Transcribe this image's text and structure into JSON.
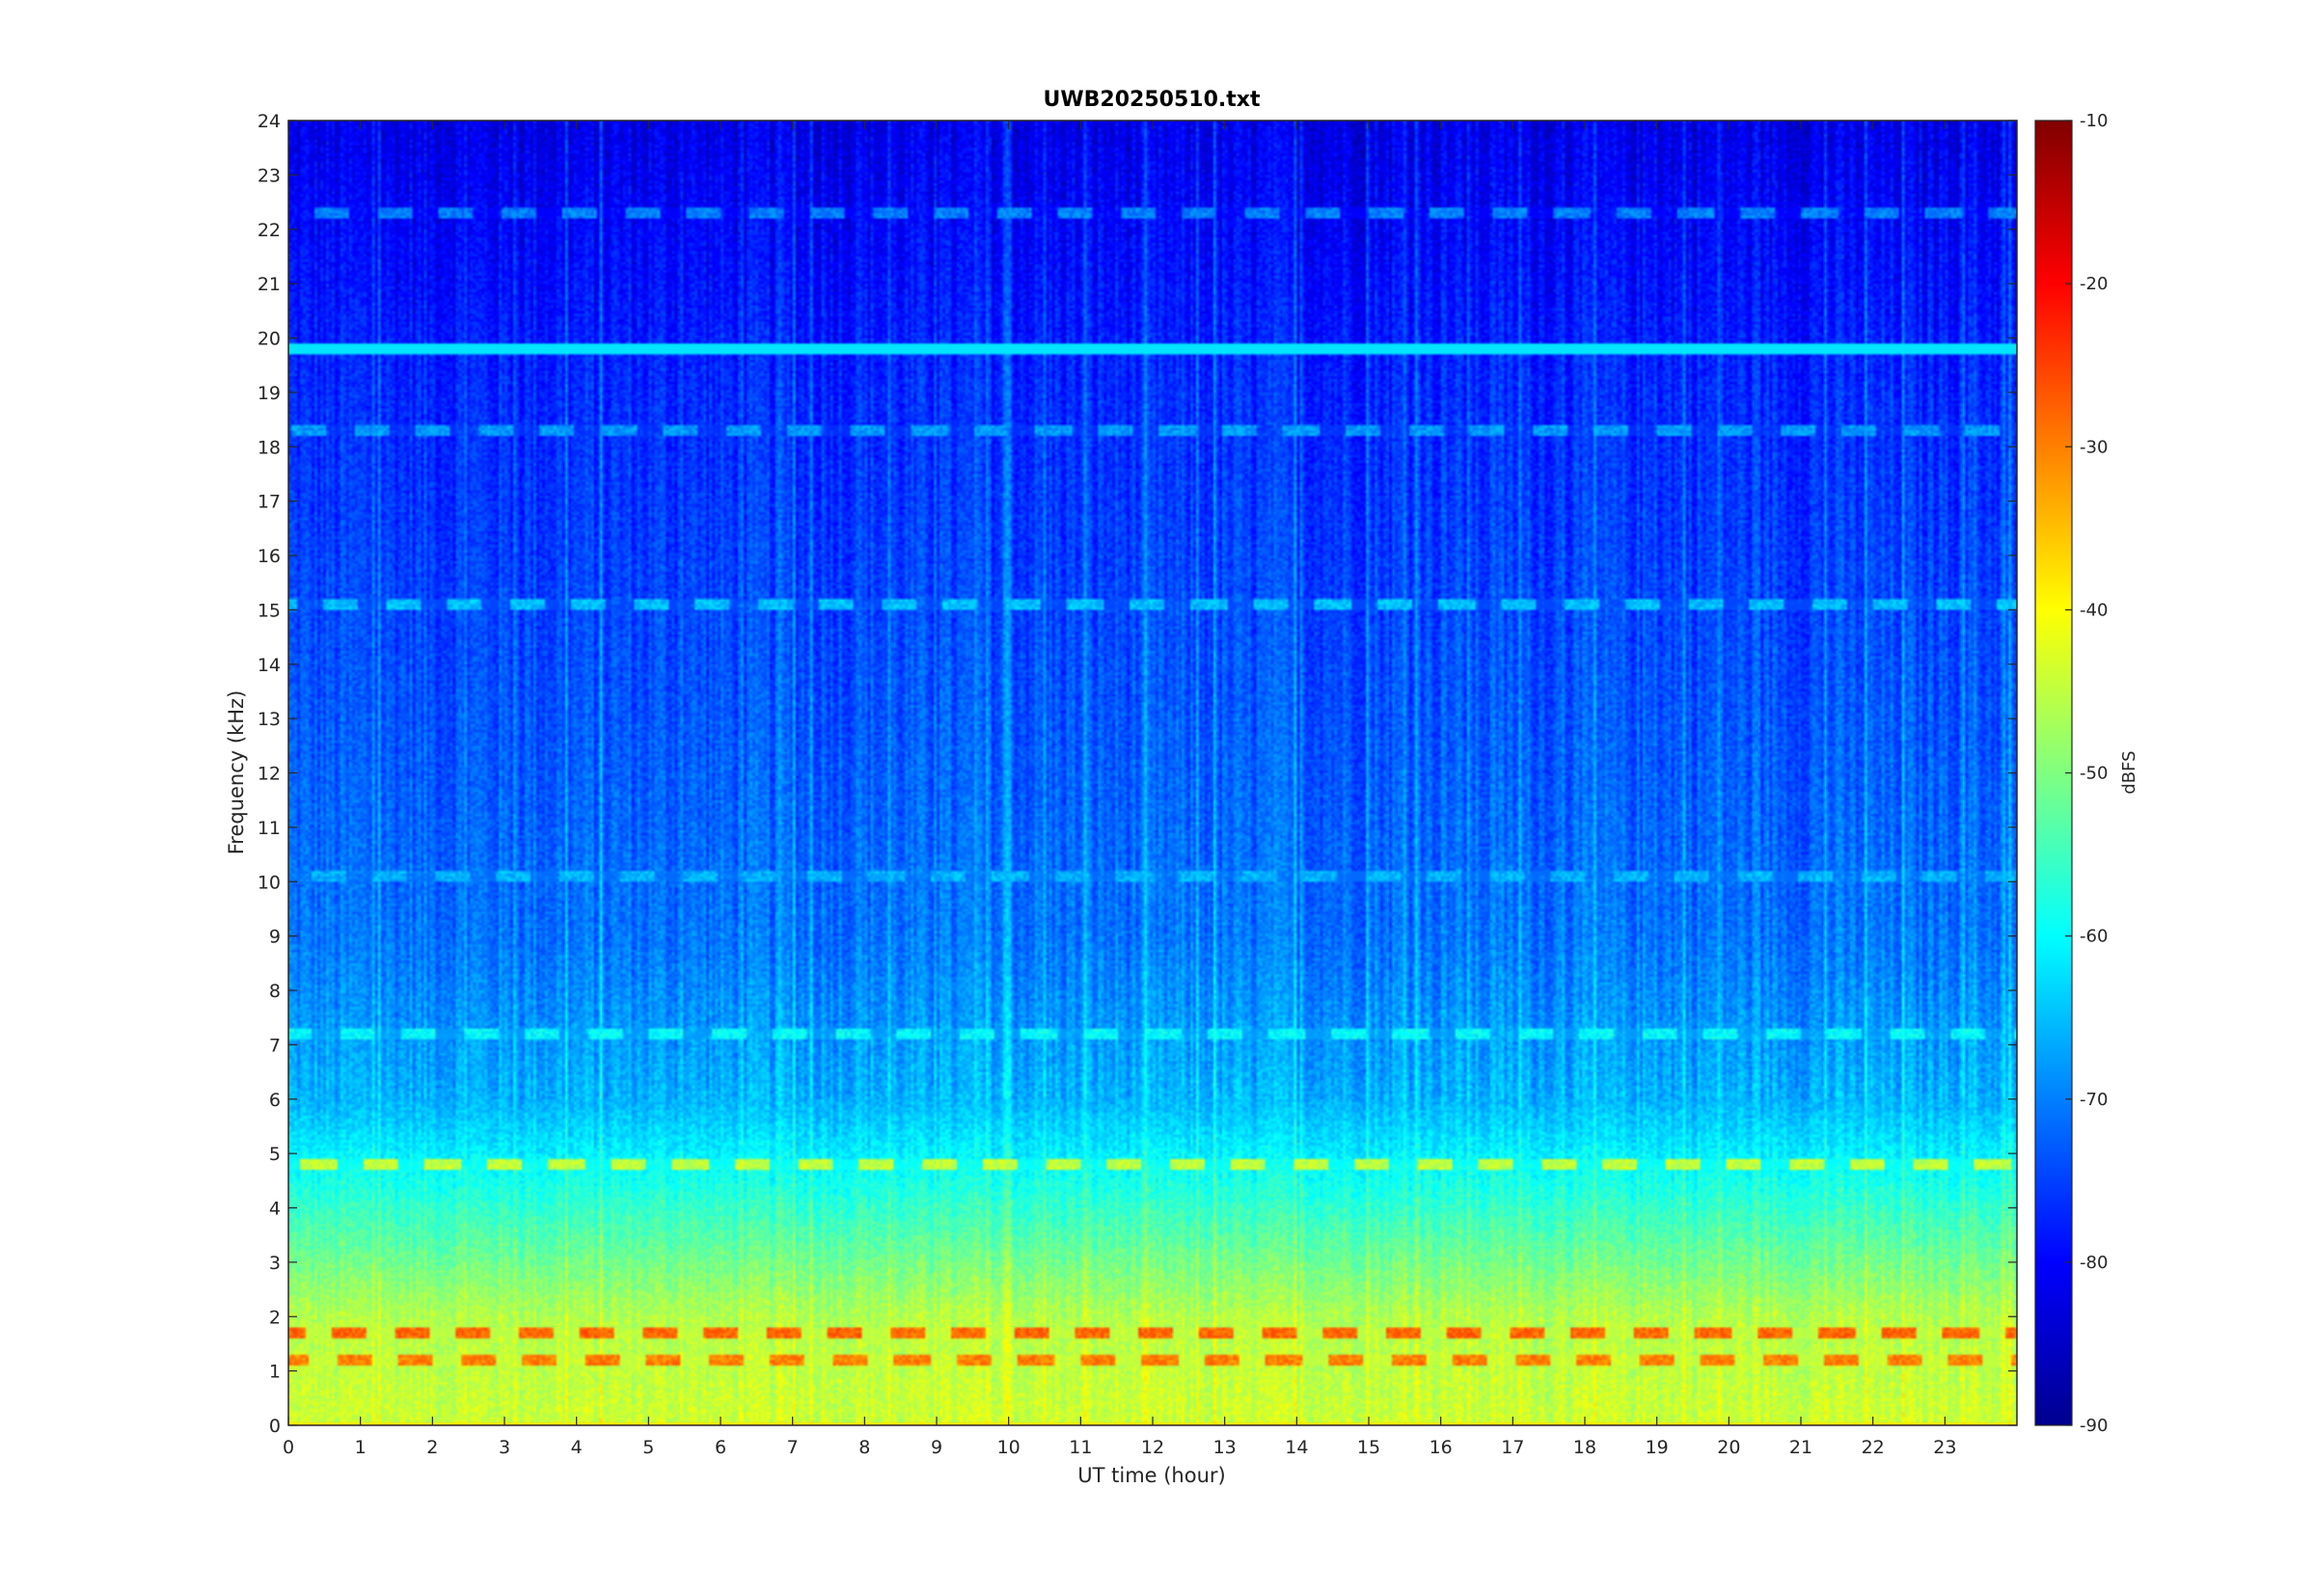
{
  "chart_data": {
    "type": "heatmap",
    "title": "UWB20250510.txt",
    "xlabel": "UT time (hour)",
    "ylabel": "Frequency (kHz)",
    "colorbar_label": "dBFS",
    "colormap": "jet",
    "x_ticks": [
      "0",
      "1",
      "2",
      "3",
      "4",
      "5",
      "6",
      "7",
      "8",
      "9",
      "10",
      "11",
      "12",
      "13",
      "14",
      "15",
      "16",
      "17",
      "18",
      "19",
      "20",
      "21",
      "22",
      "23"
    ],
    "y_ticks": [
      "0",
      "1",
      "2",
      "3",
      "4",
      "5",
      "6",
      "7",
      "8",
      "9",
      "10",
      "11",
      "12",
      "13",
      "14",
      "15",
      "16",
      "17",
      "18",
      "19",
      "20",
      "21",
      "22",
      "23",
      "24"
    ],
    "colorbar_ticks": [
      "-10",
      "-20",
      "-30",
      "-40",
      "-50",
      "-60",
      "-70",
      "-80",
      "-90"
    ],
    "xlim": [
      0,
      24
    ],
    "ylim": [
      0,
      24
    ],
    "clim": [
      -90,
      -10
    ],
    "grid": false,
    "spectral_features": [
      {
        "freq_khz": 19.8,
        "level_dbfs": -62,
        "description": "continuous carrier"
      },
      {
        "freq_khz": 15.1,
        "level_dbfs": -65,
        "description": "periodic band"
      },
      {
        "freq_khz": 10.1,
        "level_dbfs": -66,
        "description": "periodic band"
      },
      {
        "freq_khz": 18.3,
        "level_dbfs": -68,
        "description": "intermittent tone"
      },
      {
        "freq_khz": 22.3,
        "level_dbfs": -70,
        "description": "intermittent tone"
      },
      {
        "freq_khz": 7.2,
        "level_dbfs": -60,
        "description": "intermittent tone"
      },
      {
        "freq_khz": 4.8,
        "level_dbfs": -45,
        "description": "intermittent tone"
      },
      {
        "freq_khz": 1.7,
        "level_dbfs": -28,
        "description": "strong low-frequency band"
      },
      {
        "freq_khz": 1.2,
        "level_dbfs": -30,
        "description": "strong low-frequency band"
      }
    ],
    "background_profile": [
      {
        "freq_khz": 0,
        "level_dbfs": -44
      },
      {
        "freq_khz": 2,
        "level_dbfs": -46
      },
      {
        "freq_khz": 4,
        "level_dbfs": -56
      },
      {
        "freq_khz": 6,
        "level_dbfs": -66
      },
      {
        "freq_khz": 9,
        "level_dbfs": -71
      },
      {
        "freq_khz": 14,
        "level_dbfs": -74
      },
      {
        "freq_khz": 19,
        "level_dbfs": -77
      },
      {
        "freq_khz": 24,
        "level_dbfs": -82
      }
    ]
  }
}
